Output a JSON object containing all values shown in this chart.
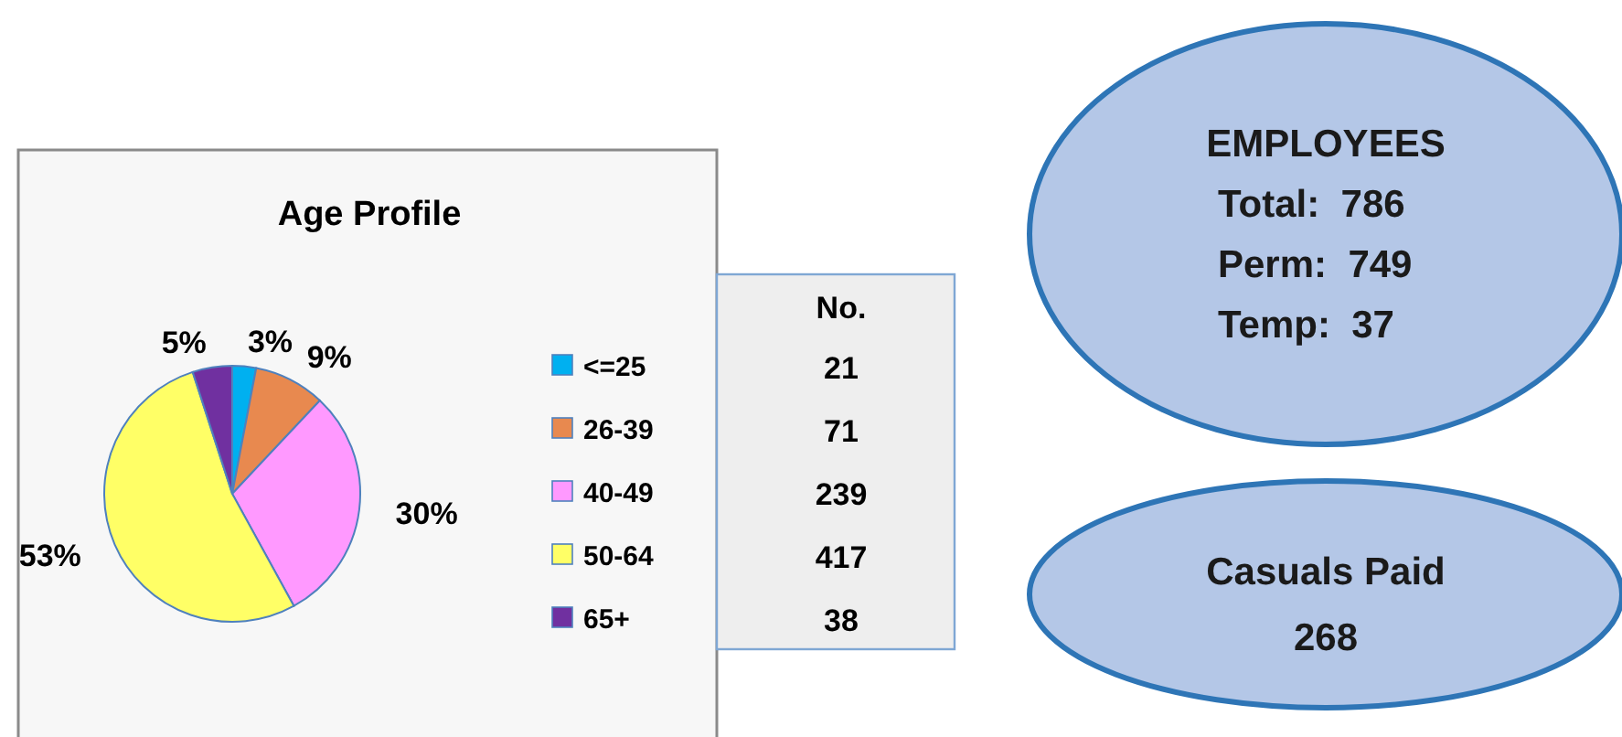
{
  "chart_data": [
    {
      "type": "pie",
      "title": "Age Profile",
      "categories": [
        "<=25",
        "26-39",
        "40-49",
        "50-64",
        "65+"
      ],
      "values": [
        3,
        9,
        30,
        53,
        5
      ],
      "colors": [
        "#00b0f0",
        "#e8894f",
        "#ff99ff",
        "#ffff66",
        "#7030a0"
      ],
      "value_labels": [
        "3%",
        "9%",
        "30%",
        "53%",
        "5%"
      ],
      "legend": "right",
      "annotations": [
        "No.",
        "21",
        "71",
        "239",
        "417",
        "38"
      ]
    },
    {
      "type": "other",
      "title": "EMPLOYEES",
      "annotations": [
        "Total:  786",
        "Perm:  749",
        "Temp:  37"
      ]
    },
    {
      "type": "other",
      "title": "Casuals Paid",
      "annotations": [
        "268"
      ]
    }
  ]
}
